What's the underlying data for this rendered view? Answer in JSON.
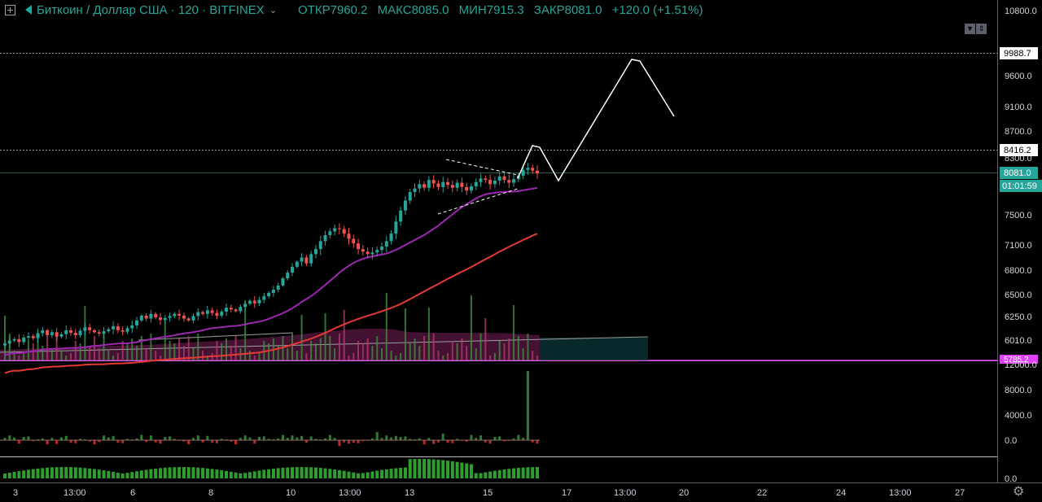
{
  "header": {
    "symbol": "Биткоин / Доллар США · 120 · BITFINEX",
    "ohlc": [
      {
        "label": "ОТКР",
        "value": "7960.2"
      },
      {
        "label": "МАКС",
        "value": "8085.0"
      },
      {
        "label": "МИН",
        "value": "7915.3"
      },
      {
        "label": "ЗАКР",
        "value": "8081.0"
      }
    ],
    "change": "+120.0 (+1.51%)"
  },
  "colors": {
    "up": "#26a69a",
    "down": "#ef5350",
    "ma_fast": "#9c27b0",
    "ma_slow": "#e53935",
    "price_badge": "#26a69a",
    "low_badge": "#e040fb"
  },
  "price_axis": {
    "ticks": [
      "10800.0",
      "9600.0",
      "9100.0",
      "8700.0",
      "8300.0",
      "7500.0",
      "7100.0",
      "6800.0",
      "6500.0",
      "6250.0",
      "6010.0"
    ],
    "markers": {
      "upper_line": "9988.7",
      "mid_line": "8416.2",
      "current_price": "8081.0",
      "countdown": "01:01:59",
      "low": "5785.2"
    }
  },
  "volume_axis": {
    "ticks": [
      "12000.0",
      "8000.0",
      "4000.0",
      "0.0"
    ]
  },
  "lower_axis": {
    "ticks": [
      "0.0"
    ]
  },
  "time_axis": {
    "labels": [
      "3",
      "13:00",
      "6",
      "8",
      "10",
      "13:00",
      "13",
      "15",
      "17",
      "13:00",
      "20",
      "22",
      "24",
      "13:00",
      "27"
    ]
  },
  "chart_data": {
    "type": "candlestick",
    "title": "",
    "symbol": "Биткоин / Доллар США · 120 · BITFINEX",
    "last_bar": {
      "open": 7960.2,
      "high": 8085.0,
      "low": 7915.3,
      "close": 8081.0
    },
    "horizontal_levels": [
      9988.7,
      8416.2,
      8081.0
    ],
    "projection_path": [
      8416.2,
      8150,
      9988.7,
      8900
    ],
    "series": [
      {
        "type": "candle",
        "close": [
          5975,
          6005,
          6020,
          5990,
          6035,
          6050,
          6030,
          6080,
          6110,
          6060,
          6090,
          6045,
          6070,
          6110,
          6085,
          6060,
          6105,
          6140,
          6110,
          6090,
          6075,
          6100,
          6120,
          6150,
          6110,
          6095,
          6130,
          6160,
          6210,
          6260,
          6230,
          6280,
          6240,
          6215,
          6235,
          6255,
          6280,
          6260,
          6230,
          6210,
          6255,
          6300,
          6280,
          6320,
          6290,
          6260,
          6305,
          6350,
          6330,
          6310,
          6360,
          6395,
          6430,
          6400,
          6440,
          6480,
          6520,
          6560,
          6610,
          6700,
          6770,
          6840,
          6900,
          6950,
          6880,
          6990,
          7050,
          7150,
          7230,
          7280,
          7320,
          7310,
          7250,
          7180,
          7120,
          7050,
          7020,
          6990,
          7010,
          7040,
          7080,
          7150,
          7250,
          7410,
          7560,
          7700,
          7820,
          7870,
          7930,
          7880,
          7990,
          7940,
          7890,
          7960,
          7920,
          7880,
          7950,
          7890,
          7840,
          7900,
          7960,
          8010,
          7990,
          7930,
          7980,
          8040,
          7990,
          7950,
          8000,
          8050,
          8130,
          8160,
          8120,
          8081
        ]
      },
      {
        "type": "line",
        "name": "",
        "values_start_end": [
          5860,
          7690
        ]
      },
      {
        "type": "line",
        "name": "",
        "values_start_end": [
          5800,
          6710
        ]
      }
    ]
  }
}
